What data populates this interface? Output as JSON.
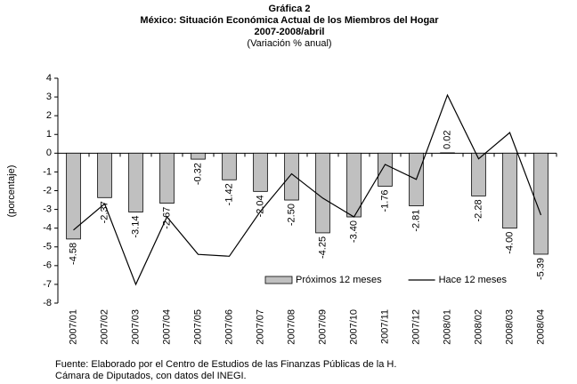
{
  "chart_data": {
    "type": "bar",
    "title_lines": [
      "Gráfica 2",
      "México: Situación Económica Actual de los Miembros del Hogar",
      "2007-2008/abril"
    ],
    "subtitle": "(Variación % anual)",
    "ylabel": "(porcentaje)",
    "categories": [
      "2007/01",
      "2007/02",
      "2007/03",
      "2007/04",
      "2007/05",
      "2007/06",
      "2007/07",
      "2007/08",
      "2007/09",
      "2007/10",
      "2007/11",
      "2007/12",
      "2008/01",
      "2008/02",
      "2008/03",
      "2008/04"
    ],
    "series": [
      {
        "name": "Próximos 12 meses",
        "type": "bar",
        "color": "#c0c0c0",
        "values": [
          -4.58,
          -2.37,
          -3.14,
          -2.67,
          -0.32,
          -1.42,
          -2.04,
          -2.5,
          -4.25,
          -3.4,
          -1.76,
          -2.81,
          0.02,
          -2.28,
          -4,
          -5.39
        ],
        "value_labels": [
          "-4.58",
          "-2.37",
          "-3.14",
          "-2.67",
          "-0.32",
          "-1.42",
          "-2.04",
          "-2.50",
          "-4.25",
          "-3.40",
          "-1.76",
          "-2.81",
          "0.02",
          "-2.28",
          "-4.00",
          "-5.39"
        ]
      },
      {
        "name": "Hace 12 meses",
        "type": "line",
        "color": "#000000",
        "values": [
          -4.1,
          -2.7,
          -7.0,
          -3.4,
          -5.4,
          -5.5,
          -3.1,
          -1.1,
          -2.4,
          -3.4,
          -0.6,
          -1.4,
          3.1,
          -0.3,
          1.1,
          -3.3
        ]
      }
    ],
    "ylim": [
      -8,
      4
    ],
    "yticks": [
      -8,
      -7,
      -6,
      -5,
      -4,
      -3,
      -2,
      -1,
      0,
      1,
      2,
      3,
      4
    ],
    "legend": "lower right",
    "source_lines": [
      "Fuente: Elaborado por el Centro de Estudios de las Finanzas Públicas de la H.",
      "Cámara de Diputados, con datos del INEGI."
    ]
  }
}
